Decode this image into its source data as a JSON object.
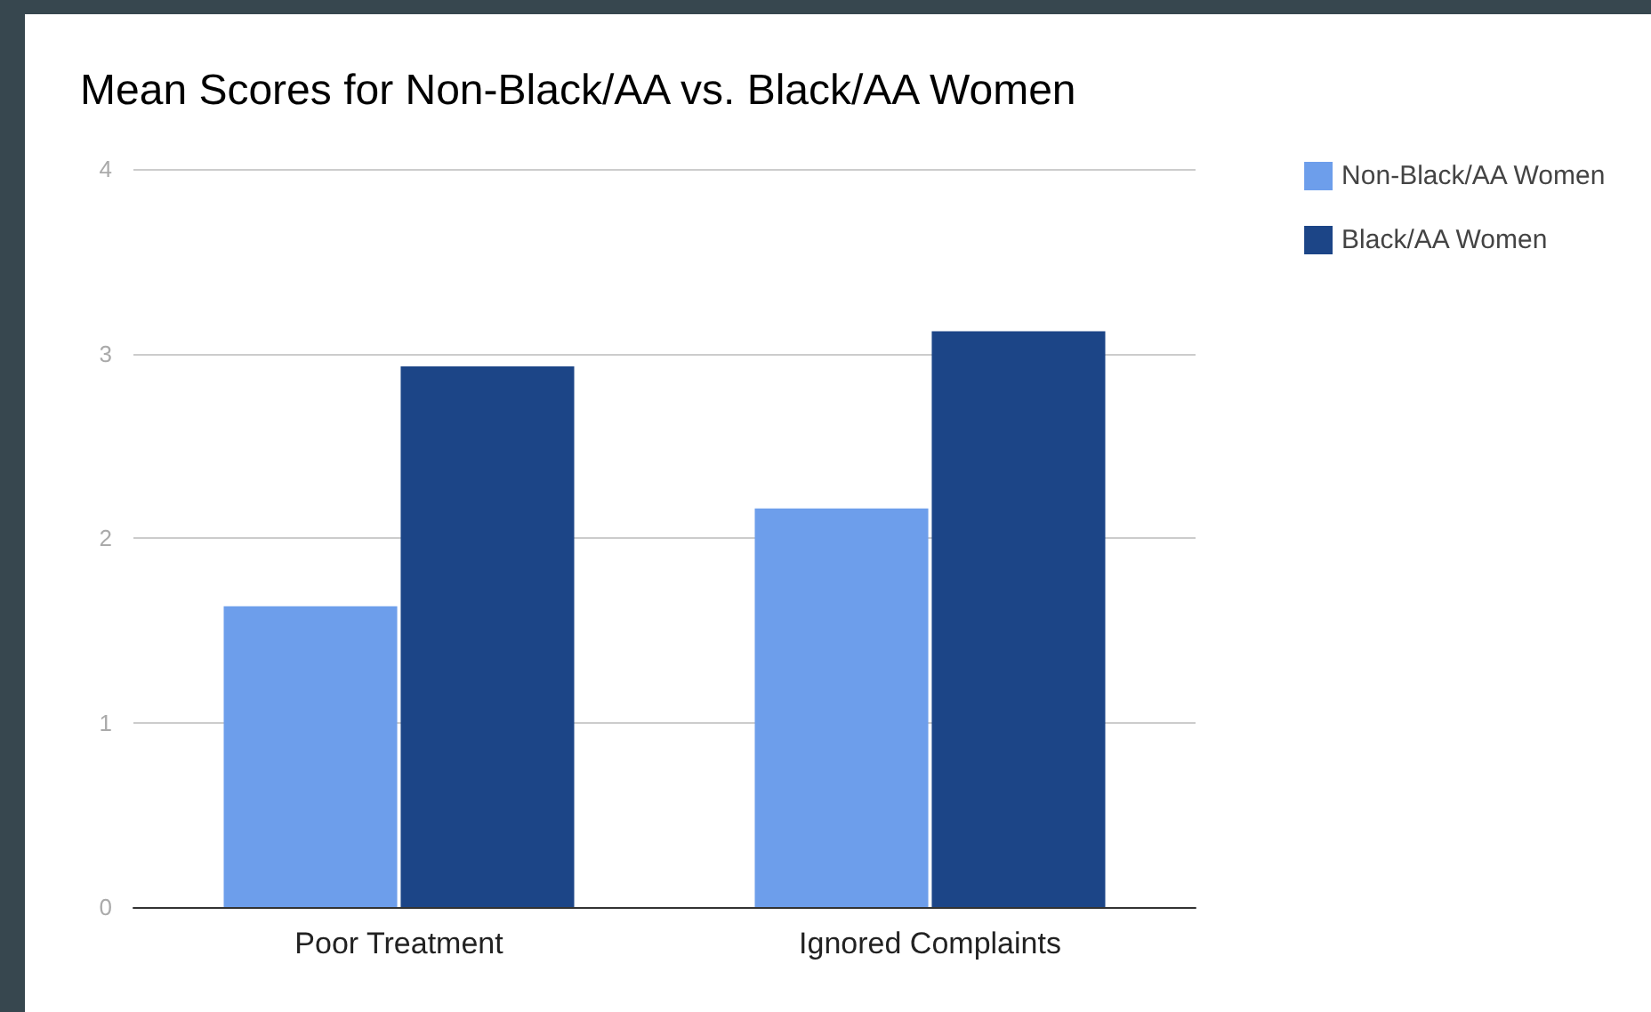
{
  "chart_data": {
    "type": "bar",
    "title": "Mean Scores for Non-Black/AA vs. Black/AA Women",
    "categories": [
      "Poor Treatment",
      "Ignored Complaints"
    ],
    "series": [
      {
        "name": "Non-Black/AA Women",
        "color": "#6d9eeb",
        "values": [
          1.63,
          2.16
        ]
      },
      {
        "name": "Black/AA Women",
        "color": "#1c4587",
        "values": [
          2.93,
          3.12
        ]
      }
    ],
    "ylim": [
      0,
      4
    ],
    "yticks": [
      0,
      1,
      2,
      3,
      4
    ],
    "grid": "y",
    "legend": "top right"
  }
}
